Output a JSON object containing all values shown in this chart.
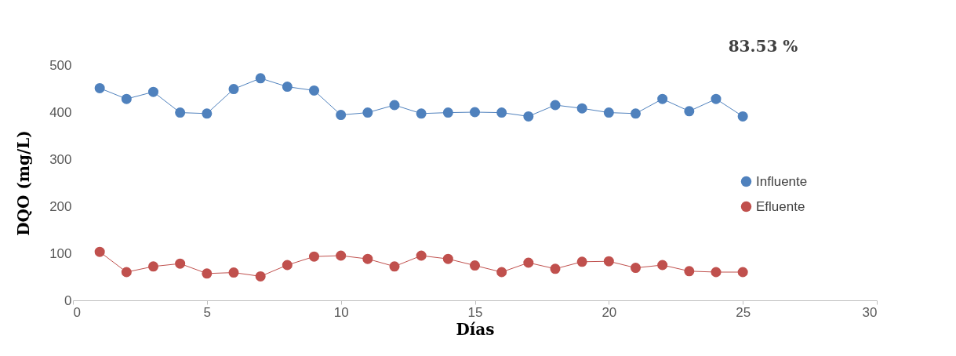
{
  "chart_data": {
    "type": "line",
    "xlabel": "Días",
    "ylabel": "DQO (mg/L)",
    "annotations": [
      "83.53 %"
    ],
    "x": [
      1,
      2,
      3,
      4,
      5,
      6,
      7,
      8,
      9,
      10,
      11,
      12,
      13,
      14,
      15,
      16,
      17,
      18,
      19,
      20,
      21,
      22,
      23,
      24,
      25
    ],
    "series": [
      {
        "name": "Influente",
        "color": "#4f81bd",
        "values": [
          451,
          428,
          443,
          399,
          397,
          449,
          472,
          454,
          446,
          394,
          399,
          415,
          397,
          399,
          400,
          399,
          391,
          415,
          408,
          399,
          397,
          428,
          402,
          428,
          391
        ]
      },
      {
        "name": "Efluente",
        "color": "#c0504d",
        "values": [
          103,
          60,
          72,
          78,
          57,
          59,
          51,
          75,
          93,
          95,
          88,
          72,
          95,
          88,
          74,
          60,
          80,
          67,
          82,
          83,
          69,
          75,
          62,
          60,
          60
        ]
      }
    ],
    "xlim": [
      0,
      30
    ],
    "xticks": [
      0,
      5,
      10,
      15,
      20,
      25,
      30
    ],
    "ylim": [
      0,
      500
    ],
    "yticks": [
      0,
      100,
      200,
      300,
      400,
      500
    ],
    "grid": false,
    "legend": "right",
    "marker": "circle",
    "line_style": "solid"
  }
}
